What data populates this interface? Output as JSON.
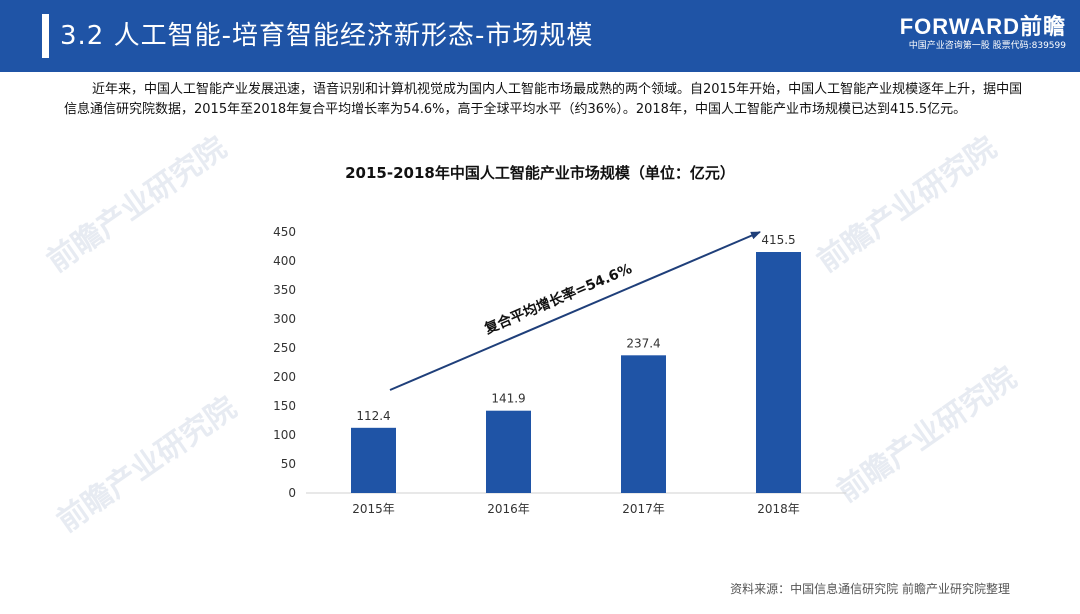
{
  "header": {
    "title": "3.2 人工智能-培育智能经济新形态-市场规模",
    "logo": "FORWARD前瞻",
    "logo_sub": "中国产业咨询第一股 股票代码:839599"
  },
  "intro": "近年来，中国人工智能产业发展迅速，语音识别和计算机视觉成为国内人工智能市场最成熟的两个领域。自2015年开始，中国人工智能产业规模逐年上升，据中国信息通信研究院数据，2015年至2018年复合平均增长率为54.6%，高于全球平均水平（约36%）。2018年，中国人工智能产业市场规模已达到415.5亿元。",
  "source": "资料来源：中国信息通信研究院 前瞻产业研究院整理",
  "watermark": "前瞻产业研究院",
  "colors": {
    "header": "#1f54a6",
    "bar": "#1f54a6",
    "arrow": "#1f3f7a"
  },
  "chart_data": {
    "type": "bar",
    "title": "2015-2018年中国人工智能产业市场规模（单位：亿元）",
    "categories": [
      "2015年",
      "2016年",
      "2017年",
      "2018年"
    ],
    "values": [
      112.4,
      141.9,
      237.4,
      415.5
    ],
    "value_labels": [
      "112.4",
      "141.9",
      "237.4",
      "415.5"
    ],
    "ylim": [
      0,
      450
    ],
    "yticks": [
      0,
      50,
      100,
      150,
      200,
      250,
      300,
      350,
      400,
      450
    ],
    "xlabel": "",
    "ylabel": "",
    "grid": false,
    "annotation": "复合平均增长率=54.6%"
  }
}
